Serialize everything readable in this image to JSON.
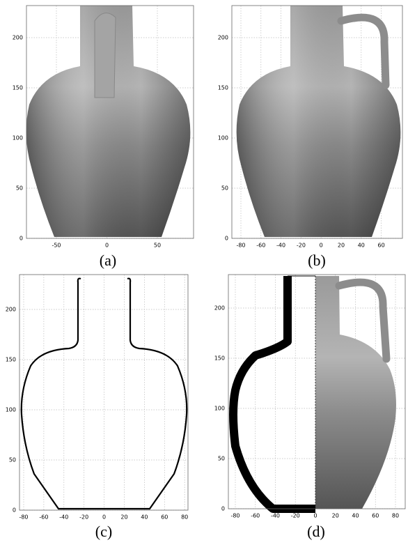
{
  "panels": [
    {
      "caption": "(a)",
      "xticks": [
        -50,
        0,
        50
      ],
      "yticks": [
        0,
        50,
        100,
        150,
        200
      ]
    },
    {
      "caption": "(b)",
      "xticks": [
        -80,
        -60,
        -40,
        -20,
        0,
        20,
        40,
        60
      ],
      "yticks": [
        0,
        50,
        100,
        150,
        200
      ]
    },
    {
      "caption": "(c)",
      "xticks": [
        -80,
        -60,
        -40,
        -20,
        0,
        20,
        40,
        60,
        80
      ],
      "yticks": [
        0,
        50,
        100,
        150,
        200
      ]
    },
    {
      "caption": "(d)",
      "xticks": [
        -80,
        -60,
        -40,
        -20,
        0,
        20,
        40,
        60,
        80
      ],
      "yticks": [
        0,
        50,
        100,
        150,
        200
      ]
    }
  ]
}
